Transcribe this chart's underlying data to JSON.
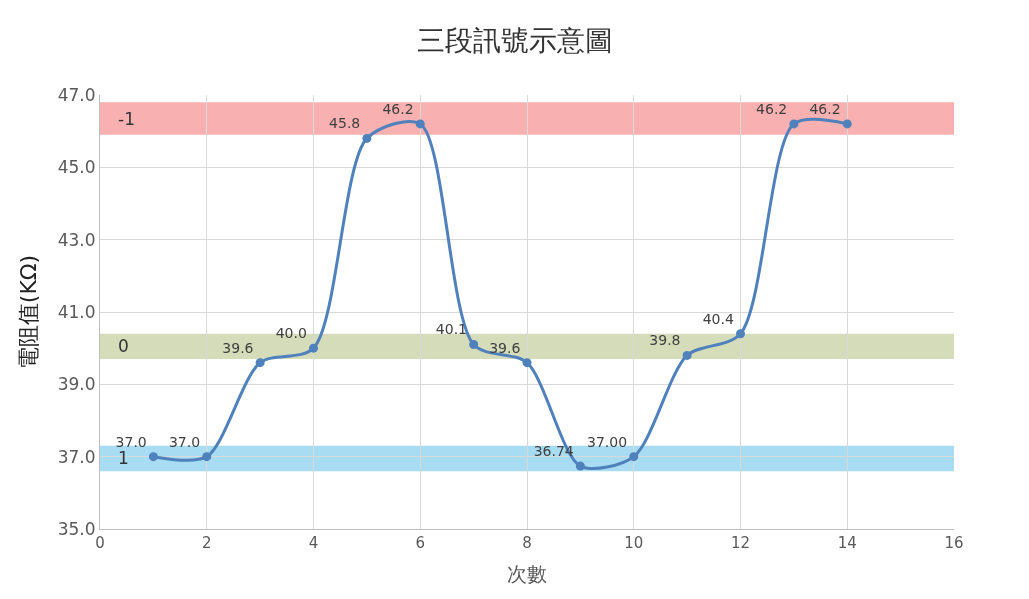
{
  "chart_data": {
    "type": "line",
    "title": "三段訊號示意圖",
    "xlabel": "次數",
    "ylabel": "電阻值(KΩ)",
    "x": [
      1,
      2,
      3,
      4,
      5,
      6,
      7,
      8,
      9,
      10,
      11,
      12,
      13,
      14
    ],
    "series": [
      {
        "color": "#4f81bd",
        "values": [
          37.0,
          37.0,
          39.6,
          40.0,
          45.8,
          46.2,
          40.1,
          39.6,
          36.74,
          37.0,
          39.8,
          40.4,
          46.2,
          46.2
        ],
        "value_labels": [
          "37.0",
          "37.0",
          "39.6",
          "40.0",
          "45.8",
          "46.2",
          "40.1",
          "39.6",
          "36.74",
          "37.00",
          "39.8",
          "40.4",
          "46.2",
          "46.2"
        ]
      }
    ],
    "xlim": [
      0,
      16
    ],
    "xticks": [
      0,
      2,
      4,
      6,
      8,
      10,
      12,
      14,
      16
    ],
    "ylim": [
      35,
      47
    ],
    "yticks": [
      {
        "value": 35,
        "label": "35.0"
      },
      {
        "value": 37,
        "label": "37.0"
      },
      {
        "value": 39,
        "label": "39.0"
      },
      {
        "value": 41,
        "label": "41.0"
      },
      {
        "value": 43,
        "label": "43.0"
      },
      {
        "value": 45,
        "label": "45.0"
      },
      {
        "value": 47,
        "label": "47.0"
      }
    ],
    "bands": [
      {
        "axis": "y",
        "from": 45.9,
        "to": 46.8,
        "label": "-1",
        "color": "#f9b0b0"
      },
      {
        "axis": "y",
        "from": 39.7,
        "to": 40.4,
        "label": "0",
        "color": "#d5dcb9"
      },
      {
        "axis": "y",
        "from": 36.6,
        "to": 37.3,
        "label": "1",
        "color": "#a8dcf2"
      }
    ],
    "grid": true,
    "marker": "circle",
    "line_style": "solid"
  }
}
